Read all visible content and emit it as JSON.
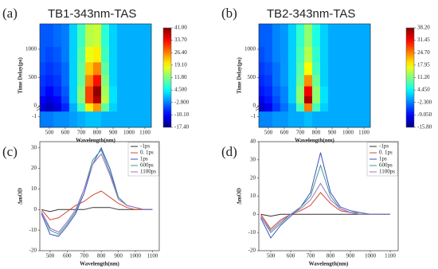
{
  "chart_data": [
    {
      "type": "heatmap",
      "panel_label": "(a)",
      "title": "TB1-343nm-TAS",
      "xlabel": "Wavelength(nm)",
      "ylabel": "Time Delay(ps)",
      "x": [
        450,
        500,
        550,
        600,
        650,
        700,
        750,
        800,
        850,
        900,
        950,
        1000,
        1050,
        1100
      ],
      "y": [
        -1,
        0,
        100,
        250,
        450,
        650,
        900,
        1200
      ],
      "z": [
        [
          -3,
          -3,
          -2,
          -2,
          -1,
          0,
          1,
          1,
          0,
          0,
          0,
          0,
          0,
          0
        ],
        [
          -12,
          -14,
          -12,
          -8,
          0,
          8,
          20,
          25,
          10,
          2,
          0,
          0,
          0,
          0
        ],
        [
          -10,
          -12,
          -10,
          -6,
          2,
          12,
          30,
          38,
          15,
          3,
          0,
          0,
          0,
          0
        ],
        [
          -8,
          -10,
          -8,
          -5,
          2,
          12,
          30,
          40,
          14,
          3,
          0,
          0,
          0,
          0
        ],
        [
          -7,
          -8,
          -7,
          -4,
          2,
          10,
          26,
          33,
          12,
          2,
          0,
          0,
          0,
          0
        ],
        [
          -6,
          -7,
          -6,
          -4,
          2,
          10,
          22,
          26,
          10,
          2,
          0,
          0,
          0,
          0
        ],
        [
          -5,
          -6,
          -5,
          -3,
          2,
          9,
          18,
          20,
          8,
          2,
          0,
          0,
          0,
          0
        ],
        [
          -5,
          -5,
          -4,
          -3,
          2,
          8,
          15,
          16,
          7,
          2,
          0,
          0,
          0,
          0
        ]
      ],
      "xlim": [
        440,
        1140
      ],
      "ylim": [
        -2,
        1450
      ],
      "axis_break": 0,
      "xticks": [
        500,
        600,
        700,
        800,
        900,
        1000,
        1100
      ],
      "yticks": [
        -1,
        0,
        500,
        1000
      ],
      "zlim": [
        -17.4,
        41
      ],
      "colorbar_ticks": [
        {
          "value": 41,
          "label": "41.00"
        },
        {
          "value": 33.7,
          "label": "33.70"
        },
        {
          "value": 26.4,
          "label": "26.40"
        },
        {
          "value": 19.1,
          "label": "19.10"
        },
        {
          "value": 11.8,
          "label": "11.80"
        },
        {
          "value": 4.5,
          "label": "4.500"
        },
        {
          "value": -2.8,
          "label": "-2.800"
        },
        {
          "value": -10.1,
          "label": "-10.10"
        },
        {
          "value": -17.4,
          "label": "-17.40"
        }
      ]
    },
    {
      "type": "heatmap",
      "panel_label": "(b)",
      "title": "TB2-343nm-TAS",
      "xlabel": "Wavelength(nm)",
      "ylabel": "Time Delay(ps)",
      "x": [
        450,
        500,
        550,
        600,
        650,
        700,
        750,
        800,
        850,
        900,
        950,
        1000,
        1050,
        1100
      ],
      "y": [
        -1,
        0,
        100,
        250,
        450,
        650,
        900,
        1200
      ],
      "z": [
        [
          -2,
          -2,
          -1,
          -1,
          0,
          0,
          1,
          0,
          0,
          0,
          0,
          0,
          0,
          0
        ],
        [
          -12,
          -10,
          -6,
          -3,
          0,
          8,
          25,
          8,
          2,
          0,
          0,
          0,
          0,
          0
        ],
        [
          -10,
          -8,
          -5,
          -2,
          2,
          12,
          36,
          12,
          3,
          0,
          0,
          0,
          0,
          0
        ],
        [
          -8,
          -7,
          -4,
          -2,
          2,
          12,
          32,
          12,
          3,
          0,
          0,
          0,
          0,
          0
        ],
        [
          -7,
          -6,
          -3,
          -1,
          2,
          10,
          24,
          10,
          2,
          0,
          0,
          0,
          0,
          0
        ],
        [
          -6,
          -5,
          -3,
          -1,
          2,
          9,
          18,
          8,
          2,
          0,
          0,
          0,
          0,
          0
        ],
        [
          -5,
          -4,
          -2,
          -1,
          2,
          8,
          14,
          7,
          2,
          0,
          0,
          0,
          0,
          0
        ],
        [
          -4,
          -4,
          -2,
          -1,
          2,
          7,
          12,
          6,
          2,
          0,
          0,
          0,
          0,
          0
        ]
      ],
      "xlim": [
        440,
        1140
      ],
      "ylim": [
        -2,
        1450
      ],
      "axis_break": 0,
      "xticks": [
        500,
        600,
        700,
        800,
        900,
        1000,
        1100
      ],
      "yticks": [
        -1,
        0,
        500,
        1000
      ],
      "zlim": [
        -15.8,
        38.2
      ],
      "colorbar_ticks": [
        {
          "value": 38.2,
          "label": "38.20"
        },
        {
          "value": 31.45,
          "label": "31.45"
        },
        {
          "value": 24.7,
          "label": "24.70"
        },
        {
          "value": 17.95,
          "label": "17.95"
        },
        {
          "value": 11.2,
          "label": "11.20"
        },
        {
          "value": 4.45,
          "label": "4.450"
        },
        {
          "value": -2.3,
          "label": "-2.300"
        },
        {
          "value": -9.05,
          "label": "-9.050"
        },
        {
          "value": -15.8,
          "label": "-15.80"
        }
      ]
    },
    {
      "type": "line",
      "panel_label": "(c)",
      "xlabel": "Wavelength(nm)",
      "ylabel": "ΔmOD",
      "legend": "upper right",
      "x": [
        450,
        500,
        550,
        600,
        650,
        700,
        750,
        800,
        850,
        900,
        950,
        1000,
        1050,
        1100
      ],
      "series": [
        {
          "name": "-1ps",
          "color": "#333333",
          "values": [
            0,
            -1,
            0,
            0,
            0,
            0,
            1,
            1,
            1,
            0,
            0,
            0,
            0,
            0
          ]
        },
        {
          "name": "0. 1ps",
          "color": "#d04a30",
          "values": [
            0,
            -5,
            -4,
            -1,
            2,
            4,
            7,
            9,
            6,
            3,
            1,
            0,
            0,
            0
          ]
        },
        {
          "name": "1ps",
          "color": "#3b4fc4",
          "values": [
            -2,
            -12,
            -13,
            -8,
            -2,
            8,
            22,
            30,
            20,
            6,
            2,
            1,
            0,
            0
          ]
        },
        {
          "name": "600ps",
          "color": "#3f9a86",
          "values": [
            -1,
            -10,
            -12,
            -7,
            -1,
            10,
            24,
            29,
            18,
            6,
            2,
            1,
            0,
            0
          ]
        },
        {
          "name": "1100ps",
          "color": "#a070c8",
          "values": [
            -1,
            -9,
            -11,
            -6,
            0,
            10,
            22,
            27,
            17,
            5,
            2,
            1,
            0,
            0
          ]
        }
      ],
      "xlim": [
        440,
        1140
      ],
      "ylim": [
        -20,
        33
      ],
      "xticks": [
        500,
        600,
        700,
        800,
        900,
        1000,
        1100
      ],
      "yticks": [
        -20,
        -10,
        0,
        10,
        20,
        30
      ]
    },
    {
      "type": "line",
      "panel_label": "(d)",
      "xlabel": "Wavelength(nm)",
      "ylabel": "ΔmOD",
      "legend": "upper right",
      "x": [
        450,
        500,
        550,
        600,
        650,
        700,
        750,
        800,
        850,
        900,
        950,
        1000,
        1050,
        1100
      ],
      "series": [
        {
          "name": "-1ps",
          "color": "#333333",
          "values": [
            0,
            -1,
            0,
            0,
            0,
            0,
            0,
            0,
            0,
            0,
            0,
            0,
            0,
            0
          ]
        },
        {
          "name": "0. 1ps",
          "color": "#d04a30",
          "values": [
            0,
            -8,
            -3,
            0,
            2,
            5,
            12,
            6,
            2,
            1,
            0,
            0,
            0,
            0
          ]
        },
        {
          "name": "1ps",
          "color": "#3b4fc4",
          "values": [
            -2,
            -13,
            -6,
            -1,
            4,
            12,
            34,
            12,
            4,
            2,
            1,
            0,
            0,
            0
          ]
        },
        {
          "name": "600ps",
          "color": "#3f9a86",
          "values": [
            -1,
            -10,
            -5,
            0,
            4,
            10,
            27,
            10,
            3,
            1,
            1,
            0,
            0,
            0
          ]
        },
        {
          "name": "1100ps",
          "color": "#a070c8",
          "values": [
            -1,
            -9,
            -4,
            0,
            3,
            8,
            17,
            8,
            3,
            1,
            0,
            0,
            0,
            0
          ]
        }
      ],
      "xlim": [
        440,
        1140
      ],
      "ylim": [
        -20,
        40
      ],
      "xticks": [
        500,
        600,
        700,
        800,
        900,
        1000,
        1100
      ],
      "yticks": [
        -20,
        -10,
        0,
        10,
        20,
        30,
        40
      ]
    }
  ]
}
